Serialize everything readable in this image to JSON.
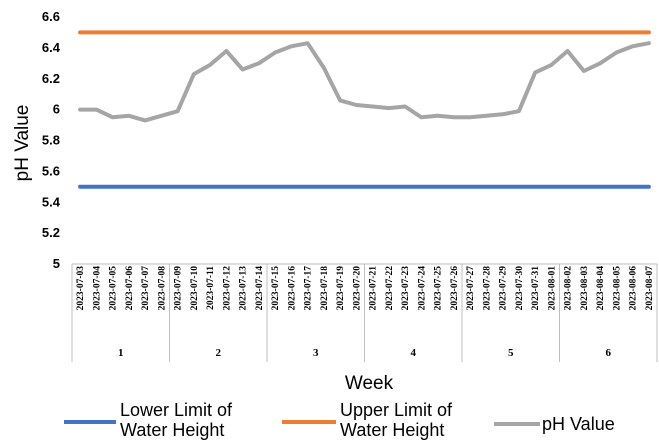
{
  "chart_data": {
    "type": "line",
    "ylabel": "pH Value",
    "xlabel": "Week",
    "ylim": [
      5,
      6.6
    ],
    "yticks": [
      "5",
      "5.2",
      "5.4",
      "5.6",
      "5.8",
      "6",
      "6.2",
      "6.4",
      "6.6"
    ],
    "grid": false,
    "legend_position": "bottom",
    "x": [
      "2023-07-03",
      "2023-07-04",
      "2023-07-05",
      "2023-07-06",
      "2023-07-07",
      "2023-07-08",
      "2023-07-09",
      "2023-07-10",
      "2023-07-11",
      "2023-07-12",
      "2023-07-13",
      "2023-07-14",
      "2023-07-15",
      "2023-07-16",
      "2023-07-17",
      "2023-07-18",
      "2023-07-19",
      "2023-07-20",
      "2023-07-21",
      "2023-07-22",
      "2023-07-23",
      "2023-07-24",
      "2023-07-25",
      "2023-07-26",
      "2023-07-27",
      "2023-07-28",
      "2023-07-29",
      "2023-07-30",
      "2023-07-31",
      "2023-08-01",
      "2023-08-02",
      "2023-08-03",
      "2023-08-04",
      "2023-08-05",
      "2023-08-06",
      "2023-08-07"
    ],
    "weeks": [
      {
        "label": "1",
        "count": 6
      },
      {
        "label": "2",
        "count": 6
      },
      {
        "label": "3",
        "count": 6
      },
      {
        "label": "4",
        "count": 6
      },
      {
        "label": "5",
        "count": 6
      },
      {
        "label": "6",
        "count": 6
      }
    ],
    "series": [
      {
        "name": "Lower Limit of Water Height",
        "color": "#4472c4",
        "values": [
          5.5,
          5.5,
          5.5,
          5.5,
          5.5,
          5.5,
          5.5,
          5.5,
          5.5,
          5.5,
          5.5,
          5.5,
          5.5,
          5.5,
          5.5,
          5.5,
          5.5,
          5.5,
          5.5,
          5.5,
          5.5,
          5.5,
          5.5,
          5.5,
          5.5,
          5.5,
          5.5,
          5.5,
          5.5,
          5.5,
          5.5,
          5.5,
          5.5,
          5.5,
          5.5,
          5.5
        ]
      },
      {
        "name": "Upper Limit of Water Height",
        "color": "#ed7d31",
        "values": [
          6.5,
          6.5,
          6.5,
          6.5,
          6.5,
          6.5,
          6.5,
          6.5,
          6.5,
          6.5,
          6.5,
          6.5,
          6.5,
          6.5,
          6.5,
          6.5,
          6.5,
          6.5,
          6.5,
          6.5,
          6.5,
          6.5,
          6.5,
          6.5,
          6.5,
          6.5,
          6.5,
          6.5,
          6.5,
          6.5,
          6.5,
          6.5,
          6.5,
          6.5,
          6.5,
          6.5
        ]
      },
      {
        "name": "pH Value",
        "color": "#a5a5a5",
        "values": [
          6.0,
          6.0,
          5.95,
          5.96,
          5.93,
          5.96,
          5.99,
          6.23,
          6.29,
          6.38,
          6.26,
          6.3,
          6.37,
          6.41,
          6.43,
          6.27,
          6.06,
          6.03,
          6.02,
          6.01,
          6.02,
          5.95,
          5.96,
          5.95,
          5.95,
          5.96,
          5.97,
          5.99,
          6.24,
          6.29,
          6.38,
          6.25,
          6.3,
          6.37,
          6.41,
          6.43
        ]
      }
    ],
    "legend": [
      {
        "lines": [
          "Lower Limit of",
          "Water Height"
        ]
      },
      {
        "lines": [
          "Upper Limit of",
          "Water Height"
        ]
      },
      {
        "lines": [
          "pH Value"
        ]
      }
    ]
  }
}
